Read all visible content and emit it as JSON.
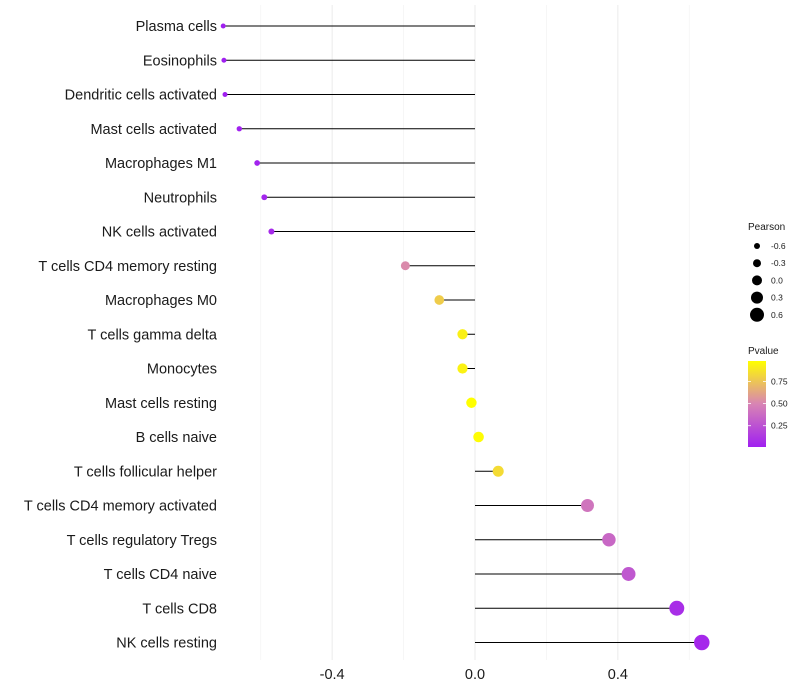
{
  "chart_data": {
    "type": "lollipop",
    "title": "",
    "xlabel": "",
    "ylabel": "",
    "xlim": [
      -0.7,
      0.7
    ],
    "x_ticks": [
      -0.4,
      0.0,
      0.4
    ],
    "x_tick_labels": [
      "-0.4",
      "0.0",
      "0.4"
    ],
    "categories": [
      "Plasma cells",
      "Eosinophils",
      "Dendritic cells activated",
      "Mast cells activated",
      "Macrophages M1",
      "Neutrophils",
      "NK cells activated",
      "T cells CD4 memory resting",
      "Macrophages M0",
      "T cells gamma delta",
      "Monocytes",
      "Mast cells resting",
      "B cells naive",
      "T cells follicular helper",
      "T cells CD4 memory activated",
      "T cells regulatory  Tregs ",
      "T cells CD4 naive",
      "T cells CD8",
      "NK cells resting"
    ],
    "values": [
      -0.705,
      -0.703,
      -0.7,
      -0.66,
      -0.61,
      -0.59,
      -0.57,
      -0.195,
      -0.1,
      -0.035,
      -0.035,
      -0.01,
      0.01,
      0.065,
      0.315,
      0.375,
      0.43,
      0.565,
      0.635
    ],
    "pvalues": [
      0.01,
      0.01,
      0.01,
      0.02,
      0.03,
      0.04,
      0.06,
      0.52,
      0.78,
      0.92,
      0.93,
      0.98,
      0.97,
      0.84,
      0.42,
      0.36,
      0.28,
      0.08,
      0.05
    ],
    "legend": {
      "size_title": "Pearson",
      "size_labels": [
        "-0.6",
        "-0.3",
        "0.0",
        "0.3",
        "0.6"
      ],
      "size_values": [
        -0.6,
        -0.3,
        0.0,
        0.3,
        0.6
      ],
      "color_title": "Pvalue",
      "color_labels": [
        "0.75",
        "0.50",
        "0.25"
      ],
      "color_values": [
        0.75,
        0.5,
        0.25
      ],
      "color_range": [
        0.01,
        0.98
      ],
      "color_low": "#a020f0",
      "color_mid": "#d884b4",
      "color_high": "#ffff00"
    },
    "grid": true
  }
}
